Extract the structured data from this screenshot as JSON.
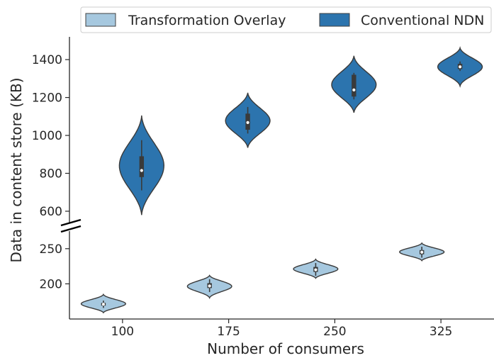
{
  "chart_data": {
    "type": "violin",
    "xlabel": "Number of consumers",
    "ylabel": "Data in content store (KB)",
    "categories": [
      "100",
      "175",
      "250",
      "325"
    ],
    "legend": {
      "placement": "top",
      "entries": [
        "Transformation Overlay",
        "Conventional NDN"
      ]
    },
    "series": [
      {
        "name": "Transformation Overlay",
        "color": "#a6c8df",
        "violins": [
          {
            "category": "100",
            "min": 159,
            "q1": 169,
            "median": 171,
            "q3": 173,
            "max": 185,
            "width": 0.52
          },
          {
            "category": "175",
            "min": 180,
            "q1": 194,
            "median": 197,
            "q3": 201,
            "max": 212,
            "width": 0.52
          },
          {
            "category": "250",
            "min": 208,
            "q1": 217,
            "median": 220,
            "q3": 224,
            "max": 235,
            "width": 0.52
          },
          {
            "category": "325",
            "min": 233,
            "q1": 242,
            "median": 245,
            "q3": 248,
            "max": 258,
            "width": 0.52
          }
        ]
      },
      {
        "name": "Conventional NDN",
        "color": "#2c74ae",
        "violins": [
          {
            "category": "100",
            "min": 580,
            "q1": 780,
            "median": 815,
            "q3": 890,
            "max": 1105,
            "wlo": 710,
            "whi": 975,
            "width": 0.52
          },
          {
            "category": "175",
            "min": 935,
            "q1": 1030,
            "median": 1068,
            "q3": 1115,
            "max": 1225,
            "wlo": 1010,
            "whi": 1150,
            "width": 0.52
          },
          {
            "category": "250",
            "min": 1120,
            "q1": 1205,
            "median": 1240,
            "q3": 1320,
            "max": 1420,
            "wlo": 1190,
            "whi": 1330,
            "width": 0.52
          },
          {
            "category": "325",
            "min": 1260,
            "q1": 1350,
            "median": 1362,
            "q3": 1378,
            "max": 1462,
            "wlo": 1340,
            "whi": 1390,
            "width": 0.52
          }
        ]
      }
    ],
    "axes": {
      "upper": {
        "ylim": [
          540,
          1520
        ],
        "ticks": [
          "600",
          "800",
          "1000",
          "1200",
          "1400"
        ]
      },
      "lower": {
        "ylim": [
          150,
          275
        ],
        "ticks": [
          "200",
          "250"
        ]
      },
      "broken_axis": true
    },
    "grid": false
  }
}
